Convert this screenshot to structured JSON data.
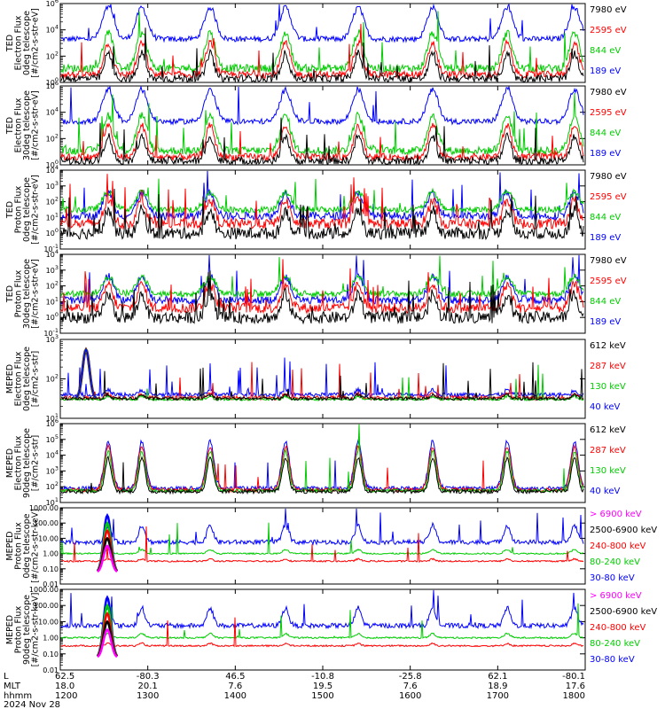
{
  "chart_data": {
    "type": "line",
    "x_rows": [
      {
        "label": "L",
        "values": [
          "62.5",
          "-80.3",
          "46.5",
          "-10.8",
          "-25.8",
          "62.1",
          "-80.1"
        ]
      },
      {
        "label": "MLT",
        "values": [
          "18.0",
          "20.1",
          "7.6",
          "19.5",
          "7.6",
          "18.9",
          "17.6"
        ]
      },
      {
        "label": "hhmm",
        "values": [
          "1200",
          "1300",
          "1400",
          "1500",
          "1600",
          "1700",
          "1800"
        ]
      }
    ],
    "date": "2024 Nov 28",
    "panels": [
      {
        "ylabel": [
          "TED",
          "Electron Flux",
          "0deg telescope",
          "[#/cm2-s-str-eV]"
        ],
        "ylog": true,
        "ylim": [
          1,
          1000000
        ],
        "tick_exponents": [
          0,
          2,
          4,
          6
        ],
        "legend": [
          {
            "text": "7980 eV",
            "color": "#000000"
          },
          {
            "text": "2595 eV",
            "color": "#ff0000"
          },
          {
            "text": "844 eV",
            "color": "#00cc00"
          },
          {
            "text": "189 eV",
            "color": "#0000ff"
          }
        ]
      },
      {
        "ylabel": [
          "TED",
          "Electron Flux",
          "30deg telescope",
          "[#/cm2-s-str-eV]"
        ],
        "ylog": true,
        "ylim": [
          1,
          1000000
        ],
        "tick_exponents": [
          0,
          2,
          4,
          6
        ],
        "legend": [
          {
            "text": "7980 eV",
            "color": "#000000"
          },
          {
            "text": "2595 eV",
            "color": "#ff0000"
          },
          {
            "text": "844 eV",
            "color": "#00cc00"
          },
          {
            "text": "189 eV",
            "color": "#0000ff"
          }
        ]
      },
      {
        "ylabel": [
          "TED",
          "Proton Flux",
          "0deg telescope",
          "[#/cm2-s-str-eV]"
        ],
        "ylog": true,
        "ylim": [
          0.1,
          10000
        ],
        "tick_exponents": [
          -1,
          0,
          1,
          2,
          3,
          4
        ],
        "legend": [
          {
            "text": "7980 eV",
            "color": "#000000"
          },
          {
            "text": "2595 eV",
            "color": "#ff0000"
          },
          {
            "text": "844 eV",
            "color": "#00cc00"
          },
          {
            "text": "189 eV",
            "color": "#0000ff"
          }
        ]
      },
      {
        "ylabel": [
          "TED",
          "Proton Flux",
          "30deg telescope",
          "[#/cm2-s-str-eV]"
        ],
        "ylog": true,
        "ylim": [
          0.1,
          10000
        ],
        "tick_exponents": [
          -1,
          0,
          1,
          2,
          3,
          4
        ],
        "legend": [
          {
            "text": "7980 eV",
            "color": "#000000"
          },
          {
            "text": "2595 eV",
            "color": "#ff0000"
          },
          {
            "text": "844 eV",
            "color": "#00cc00"
          },
          {
            "text": "189 eV",
            "color": "#0000ff"
          }
        ]
      },
      {
        "ylabel": [
          "MEPED",
          "Electron Flux",
          "0deg telescope",
          "[#/cm2-s-str]"
        ],
        "ylog": true,
        "ylim": [
          10,
          1000
        ],
        "tick_exponents": [
          1,
          2,
          3
        ],
        "legend": [
          {
            "text": "612 keV",
            "color": "#000000"
          },
          {
            "text": "287 keV",
            "color": "#ff0000"
          },
          {
            "text": "130 keV",
            "color": "#00cc00"
          },
          {
            "text": "40 keV",
            "color": "#0000ff"
          }
        ]
      },
      {
        "ylabel": [
          "MEPED",
          "Electron Flux",
          "90deg telescope",
          "[#/cm2-s-str]"
        ],
        "ylog": true,
        "ylim": [
          10,
          1000000
        ],
        "tick_exponents": [
          1,
          2,
          3,
          4,
          5,
          6
        ],
        "legend": [
          {
            "text": "612 keV",
            "color": "#000000"
          },
          {
            "text": "287 keV",
            "color": "#ff0000"
          },
          {
            "text": "130 keV",
            "color": "#00cc00"
          },
          {
            "text": "40 keV",
            "color": "#0000ff"
          }
        ]
      },
      {
        "ylabel": [
          "MEPED",
          "Proton Flux",
          "0deg telescope",
          "[#/cm2-s-str-keV]"
        ],
        "ylog": true,
        "ylim": [
          0.01,
          1000
        ],
        "tick_labels": [
          "0.01",
          "0.10",
          "1.00",
          "10.00",
          "100.00",
          "1000.00"
        ],
        "legend": [
          {
            "text": "> 6900 keV",
            "color": "#ff00ff"
          },
          {
            "text": "2500-6900 keV",
            "color": "#000000"
          },
          {
            "text": "240-800 keV",
            "color": "#ff0000"
          },
          {
            "text": "80-240 keV",
            "color": "#00cc00"
          },
          {
            "text": "30-80 keV",
            "color": "#0000ff"
          }
        ]
      },
      {
        "ylabel": [
          "MEPED",
          "Proton Flux",
          "90deg telescope",
          "[#/cm2-s-str-keV]"
        ],
        "ylog": true,
        "ylim": [
          0.01,
          1000
        ],
        "tick_labels": [
          "0.01",
          "0.10",
          "1.00",
          "10.00",
          "100.00",
          "1000.00"
        ],
        "legend": [
          {
            "text": "> 6900 keV",
            "color": "#ff00ff"
          },
          {
            "text": "2500-6900 keV",
            "color": "#000000"
          },
          {
            "text": "240-800 keV",
            "color": "#ff0000"
          },
          {
            "text": "80-240 keV",
            "color": "#00cc00"
          },
          {
            "text": "30-80 keV",
            "color": "#0000ff"
          }
        ]
      }
    ]
  }
}
